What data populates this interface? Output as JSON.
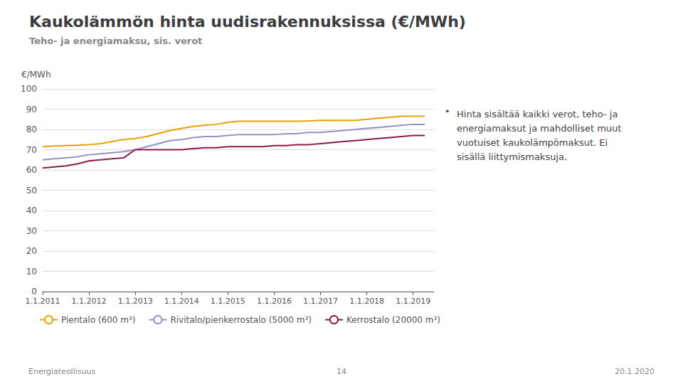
{
  "chart_data": {
    "type": "line",
    "title": "Kaukolämmön hinta uudisrakennuksissa (€/MWh)",
    "subtitle": "Teho- ja energiamaksu, sis. verot",
    "ylabel": "€/MWh",
    "annotations": [
      "•",
      "Hinta sisältää kaikki verot, teho- ja\nenergiamaksut ja mahdolliset muut\nvuotuiset kaukolämpömaksut. Ei\nsisällä liittymismaksuja.",
      "Energiateollisuus",
      "14",
      "20.1.2020"
    ],
    "x": [
      2011.0,
      2011.25,
      2011.5,
      2011.75,
      2012.0,
      2012.25,
      2012.5,
      2012.75,
      2013.0,
      2013.25,
      2013.5,
      2013.75,
      2014.0,
      2014.25,
      2014.5,
      2014.75,
      2015.0,
      2015.25,
      2015.5,
      2015.75,
      2016.0,
      2016.25,
      2016.5,
      2016.75,
      2017.0,
      2017.25,
      2017.5,
      2017.75,
      2018.0,
      2018.25,
      2018.5,
      2018.75,
      2019.0,
      2019.25
    ],
    "series": [
      {
        "name": "Pientalo (600 m³)",
        "color": "#E8A000",
        "values": [
          71.5,
          71.8,
          72.0,
          72.2,
          72.5,
          73.0,
          74.0,
          75.0,
          75.5,
          76.5,
          78.0,
          79.5,
          80.5,
          81.5,
          82.0,
          82.5,
          83.5,
          84.0,
          84.0,
          84.0,
          84.0,
          84.0,
          84.0,
          84.2,
          84.5,
          84.5,
          84.5,
          84.5,
          85.0,
          85.5,
          86.0,
          86.5,
          86.5,
          86.5
        ]
      },
      {
        "name": "Rivitalo/pienkerrostalo (5000 m³)",
        "color": "#9B8EC4",
        "values": [
          65.0,
          65.5,
          66.0,
          66.5,
          67.5,
          68.0,
          68.5,
          69.0,
          70.0,
          71.5,
          73.0,
          74.5,
          75.0,
          76.0,
          76.5,
          76.5,
          77.0,
          77.5,
          77.5,
          77.5,
          77.5,
          77.8,
          78.0,
          78.5,
          78.5,
          79.0,
          79.5,
          80.0,
          80.5,
          81.0,
          81.5,
          82.0,
          82.5,
          82.5
        ]
      },
      {
        "name": "Kerrostalo (20000 m³)",
        "color": "#8B1A4A",
        "values": [
          61.0,
          61.5,
          62.0,
          63.0,
          64.5,
          65.0,
          65.5,
          66.0,
          70.0,
          70.0,
          70.0,
          70.0,
          70.0,
          70.5,
          71.0,
          71.0,
          71.5,
          71.5,
          71.5,
          71.5,
          72.0,
          72.0,
          72.5,
          72.5,
          73.0,
          73.5,
          74.0,
          74.5,
          75.0,
          75.5,
          76.0,
          76.5,
          77.0,
          77.0
        ]
      }
    ],
    "xlim": [
      2011.0,
      2019.45
    ],
    "xticks": [
      {
        "value": 2011,
        "label": "1.1.2011"
      },
      {
        "value": 2012,
        "label": "1.1.2012"
      },
      {
        "value": 2013,
        "label": "1.1.2013"
      },
      {
        "value": 2014,
        "label": "1.1.2014"
      },
      {
        "value": 2015,
        "label": "1.1.2015"
      },
      {
        "value": 2016,
        "label": "1.1.2016"
      },
      {
        "value": 2017,
        "label": "1.1.2017"
      },
      {
        "value": 2018,
        "label": "1.1.2018"
      },
      {
        "value": 2019,
        "label": "1.1.2019"
      }
    ],
    "ylim": [
      0,
      100
    ],
    "yticks": [
      0,
      10,
      20,
      30,
      40,
      50,
      60,
      70,
      80,
      90,
      100
    ],
    "grid": true,
    "legend": "bottom"
  }
}
